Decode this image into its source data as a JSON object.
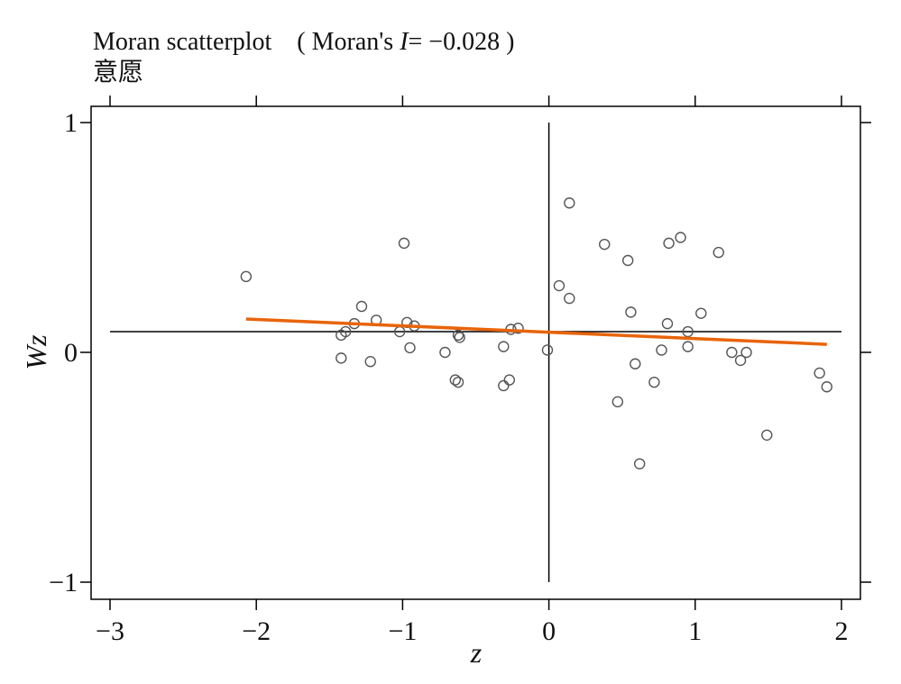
{
  "header": {
    "title_prefix": "Moran scatterplot　( Moran's ",
    "title_stat_symbol": "I",
    "title_suffix": "= −0.028 )",
    "subtitle": "意愿"
  },
  "chart_data": {
    "type": "scatter",
    "title": "Moran scatterplot ( Moran's I= −0.028 )",
    "subtitle": "意愿",
    "moran_i": -0.028,
    "xlabel": "z",
    "ylabel": "Wz",
    "xlim": [
      -3,
      2
    ],
    "ylim": [
      -1,
      1
    ],
    "x_ticks": [
      -3,
      -2,
      -1,
      0,
      1,
      2
    ],
    "x_tick_labels": [
      "−3",
      "−2",
      "−1",
      "0",
      "1",
      "2"
    ],
    "y_ticks": [
      -1,
      0,
      1
    ],
    "y_tick_labels": [
      "−1",
      "0",
      "1"
    ],
    "grid": false,
    "reference_lines": {
      "vertical_x": 0,
      "horizontal_y": 0.09
    },
    "fit_line": {
      "color": "#e8640a",
      "x": [
        -2.07,
        1.9
      ],
      "y": [
        0.145,
        0.035
      ]
    },
    "marker_color": "#555555",
    "points": [
      {
        "x": -2.07,
        "y": 0.33
      },
      {
        "x": -1.42,
        "y": 0.075
      },
      {
        "x": -1.42,
        "y": -0.025
      },
      {
        "x": -1.39,
        "y": 0.09
      },
      {
        "x": -1.33,
        "y": 0.125
      },
      {
        "x": -1.28,
        "y": 0.2
      },
      {
        "x": -1.22,
        "y": -0.04
      },
      {
        "x": -1.18,
        "y": 0.14
      },
      {
        "x": -1.02,
        "y": 0.09
      },
      {
        "x": -0.99,
        "y": 0.475
      },
      {
        "x": -0.97,
        "y": 0.13
      },
      {
        "x": -0.95,
        "y": 0.02
      },
      {
        "x": -0.92,
        "y": 0.115
      },
      {
        "x": -0.71,
        "y": 0.0
      },
      {
        "x": -0.64,
        "y": -0.12
      },
      {
        "x": -0.62,
        "y": 0.075
      },
      {
        "x": -0.62,
        "y": -0.13
      },
      {
        "x": -0.61,
        "y": 0.065
      },
      {
        "x": -0.31,
        "y": 0.025
      },
      {
        "x": -0.31,
        "y": -0.145
      },
      {
        "x": -0.27,
        "y": -0.12
      },
      {
        "x": -0.26,
        "y": 0.1
      },
      {
        "x": -0.21,
        "y": 0.105
      },
      {
        "x": -0.01,
        "y": 0.01
      },
      {
        "x": 0.07,
        "y": 0.29
      },
      {
        "x": 0.14,
        "y": 0.235
      },
      {
        "x": 0.14,
        "y": 0.65
      },
      {
        "x": 0.38,
        "y": 0.47
      },
      {
        "x": 0.47,
        "y": -0.215
      },
      {
        "x": 0.54,
        "y": 0.4
      },
      {
        "x": 0.56,
        "y": 0.175
      },
      {
        "x": 0.59,
        "y": -0.05
      },
      {
        "x": 0.62,
        "y": -0.485
      },
      {
        "x": 0.72,
        "y": -0.13
      },
      {
        "x": 0.77,
        "y": 0.01
      },
      {
        "x": 0.81,
        "y": 0.125
      },
      {
        "x": 0.82,
        "y": 0.475
      },
      {
        "x": 0.9,
        "y": 0.5
      },
      {
        "x": 0.95,
        "y": 0.025
      },
      {
        "x": 0.95,
        "y": 0.09
      },
      {
        "x": 1.04,
        "y": 0.17
      },
      {
        "x": 1.16,
        "y": 0.435
      },
      {
        "x": 1.25,
        "y": 0.0
      },
      {
        "x": 1.31,
        "y": -0.035
      },
      {
        "x": 1.35,
        "y": 0.0
      },
      {
        "x": 1.49,
        "y": -0.36
      },
      {
        "x": 1.85,
        "y": -0.09
      },
      {
        "x": 1.9,
        "y": -0.15
      }
    ]
  }
}
